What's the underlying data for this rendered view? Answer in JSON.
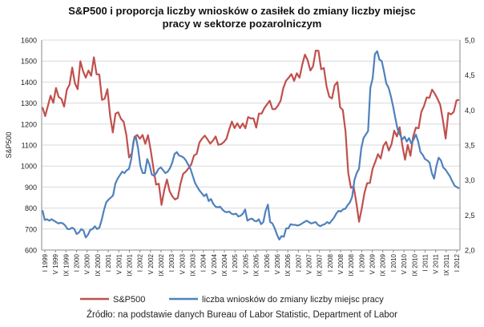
{
  "chart_data": {
    "type": "line",
    "title_line1": "S&P500 i proporcja liczby wniosków o zasiłek do zmiany liczby miejsc",
    "title_line2": "pracy w sektorze pozarolniczym",
    "ylabel": "S&P500",
    "ylim": [
      600,
      1600
    ],
    "y_ticks": [
      600,
      700,
      800,
      900,
      1000,
      1100,
      1200,
      1300,
      1400,
      1500,
      1600
    ],
    "y2lim": [
      2.0,
      5.0
    ],
    "y2_ticks": [
      "2,0",
      "2,5",
      "3,0",
      "3,5",
      "4,0",
      "4,5",
      "5,0"
    ],
    "grid": true,
    "legend_position": "bottom",
    "x_labels": [
      "I 1999",
      "V 1999",
      "IX 1999",
      "I 2000",
      "V 2000",
      "IX 2000",
      "I 2001",
      "V 2001",
      "IX 2001",
      "I 2002",
      "V 2002",
      "IX 2002",
      "I 2003",
      "V 2003",
      "IX 2003",
      "I 2004",
      "V 2004",
      "IX 2004",
      "I 2005",
      "V 2005",
      "IX 2005",
      "I 2006",
      "V 2006",
      "IX 2006",
      "I 2007",
      "V 2007",
      "IX 2007",
      "I 2008",
      "V 2008",
      "IX 2008",
      "I 2009",
      "V 2009",
      "IX 2009",
      "I 2010",
      "V 2010",
      "IX 2010",
      "I 2011",
      "V 2011",
      "IX 2011",
      "I 2012"
    ],
    "series": [
      {
        "name": "S&P500",
        "color": "#c0504d",
        "axis": "left",
        "values": [
          1280,
          1238,
          1286,
          1335,
          1301,
          1372,
          1329,
          1320,
          1283,
          1363,
          1388,
          1469,
          1394,
          1366,
          1499,
          1452,
          1421,
          1455,
          1430,
          1518,
          1437,
          1436,
          1315,
          1321,
          1366,
          1240,
          1160,
          1250,
          1256,
          1225,
          1211,
          1148,
          1041,
          1060,
          1139,
          1148,
          1130,
          1148,
          1106,
          1147,
          1076,
          990,
          912,
          916,
          815,
          885,
          936,
          880,
          856,
          841,
          848,
          916,
          963,
          974,
          990,
          1008,
          1050,
          1058,
          1112,
          1131,
          1145,
          1127,
          1107,
          1121,
          1141,
          1101,
          1104,
          1114,
          1130,
          1174,
          1212,
          1181,
          1204,
          1181,
          1203,
          1180,
          1233,
          1227,
          1227,
          1183,
          1250,
          1250,
          1276,
          1294,
          1311,
          1271,
          1271,
          1287,
          1311,
          1371,
          1406,
          1421,
          1438,
          1406,
          1442,
          1421,
          1482,
          1531,
          1504,
          1455,
          1475,
          1550,
          1549,
          1461,
          1467,
          1379,
          1330,
          1322,
          1385,
          1400,
          1280,
          1267,
          1165,
          968,
          896,
          903,
          826,
          735,
          798,
          872,
          919,
          919,
          987,
          1020,
          1057,
          1036,
          1096,
          1115,
          1074,
          1104,
          1169,
          1141,
          1185,
          1099,
          1030,
          1101,
          1049,
          1141,
          1183,
          1180,
          1257,
          1286,
          1327,
          1325,
          1364,
          1345,
          1320,
          1292,
          1218,
          1131,
          1253,
          1246,
          1258,
          1312,
          1316
        ]
      },
      {
        "name": "liczba wniosków do zmiany liczby miejsc pracy",
        "color": "#4f81bd",
        "axis": "right",
        "values": [
          2.57,
          2.43,
          2.44,
          2.42,
          2.44,
          2.42,
          2.4,
          2.38,
          2.39,
          2.38,
          2.35,
          2.3,
          2.3,
          2.32,
          2.3,
          2.23,
          2.25,
          2.3,
          2.28,
          2.18,
          2.22,
          2.29,
          2.3,
          2.34,
          2.3,
          2.32,
          2.43,
          2.57,
          2.68,
          2.72,
          2.75,
          2.78,
          2.95,
          3.02,
          3.07,
          3.12,
          3.1,
          3.14,
          3.16,
          3.3,
          3.56,
          3.62,
          3.45,
          3.2,
          3.1,
          3.1,
          3.3,
          3.22,
          3.08,
          3.06,
          3.1,
          3.16,
          3.18,
          3.14,
          3.1,
          3.12,
          3.17,
          3.25,
          3.37,
          3.4,
          3.35,
          3.34,
          3.32,
          3.28,
          3.22,
          3.16,
          3.06,
          2.96,
          2.9,
          2.85,
          2.81,
          2.77,
          2.8,
          2.7,
          2.73,
          2.66,
          2.62,
          2.61,
          2.62,
          2.58,
          2.55,
          2.54,
          2.55,
          2.52,
          2.51,
          2.52,
          2.48,
          2.49,
          2.52,
          2.58,
          2.42,
          2.44,
          2.45,
          2.42,
          2.41,
          2.44,
          2.37,
          2.4,
          2.56,
          2.65,
          2.4,
          2.38,
          2.31,
          2.22,
          2.15,
          2.2,
          2.19,
          2.31,
          2.31,
          2.37,
          2.36,
          2.36,
          2.35,
          2.36,
          2.38,
          2.4,
          2.42,
          2.4,
          2.38,
          2.39,
          2.4,
          2.36,
          2.34,
          2.36,
          2.37,
          2.4,
          2.38,
          2.42,
          2.46,
          2.52,
          2.56,
          2.55,
          2.58,
          2.59,
          2.64,
          2.68,
          2.76,
          3.0,
          3.1,
          3.16,
          3.45,
          3.6,
          3.65,
          3.7,
          4.32,
          4.45,
          4.8,
          4.84,
          4.72,
          4.7,
          4.55,
          4.38,
          4.32,
          4.2,
          4.05,
          3.88,
          3.72,
          3.65,
          3.58,
          3.62,
          3.55,
          3.6,
          3.52,
          3.58,
          3.65,
          3.55,
          3.4,
          3.36,
          3.3,
          3.28,
          3.25,
          3.1,
          3.02,
          3.2,
          3.32,
          3.28,
          3.18,
          3.15,
          3.1,
          3.05,
          2.98,
          2.92,
          2.9,
          2.88
        ]
      }
    ]
  },
  "legend": {
    "item1": "S&P500",
    "item2": "liczba wniosków do zmiany liczby miejsc pracy"
  },
  "source": "Źródło: na podstawie danych Bureau of Labor Statistic, Department of Labor"
}
